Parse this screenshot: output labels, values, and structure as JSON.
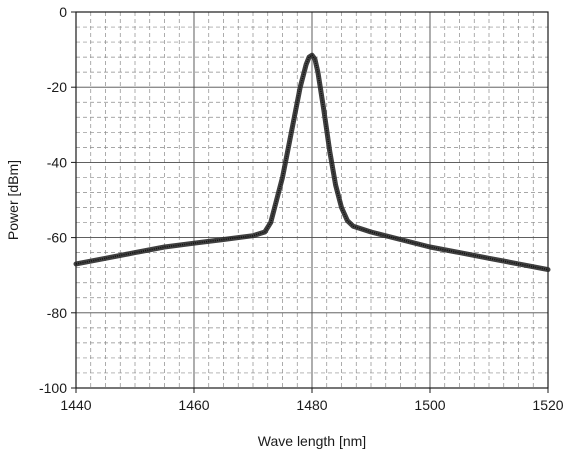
{
  "chart_data": {
    "type": "line",
    "title": "",
    "xlabel": "Wave length [nm]",
    "ylabel": "Power [dBm]",
    "xlim": [
      1440,
      1520
    ],
    "ylim": [
      -100,
      0
    ],
    "xticks": [
      1440,
      1460,
      1480,
      1500,
      1520
    ],
    "yticks": [
      0,
      -20,
      -40,
      -60,
      -80,
      -100
    ],
    "x_minor_step": 2.5,
    "y_minor_step": 4,
    "grid": true,
    "legend": "none",
    "line_color": "#2b2b2b",
    "series": [
      {
        "x": [
          1440,
          1445,
          1450,
          1455,
          1460,
          1465,
          1470,
          1472,
          1473,
          1474,
          1475,
          1476,
          1477,
          1478,
          1479,
          1479.5,
          1480,
          1480.5,
          1481,
          1482,
          1483,
          1484,
          1485,
          1486,
          1487,
          1490,
          1495,
          1500,
          1505,
          1510,
          1515,
          1520
        ],
        "y": [
          -67,
          -65.5,
          -64,
          -62.5,
          -61.5,
          -60.5,
          -59.5,
          -58.5,
          -56,
          -50,
          -44,
          -36,
          -28,
          -20,
          -14,
          -12,
          -11.5,
          -12.5,
          -16,
          -26,
          -37,
          -46,
          -52,
          -55.5,
          -57,
          -58.5,
          -60.5,
          -62.5,
          -64,
          -65.5,
          -67,
          -68.5
        ]
      }
    ]
  }
}
